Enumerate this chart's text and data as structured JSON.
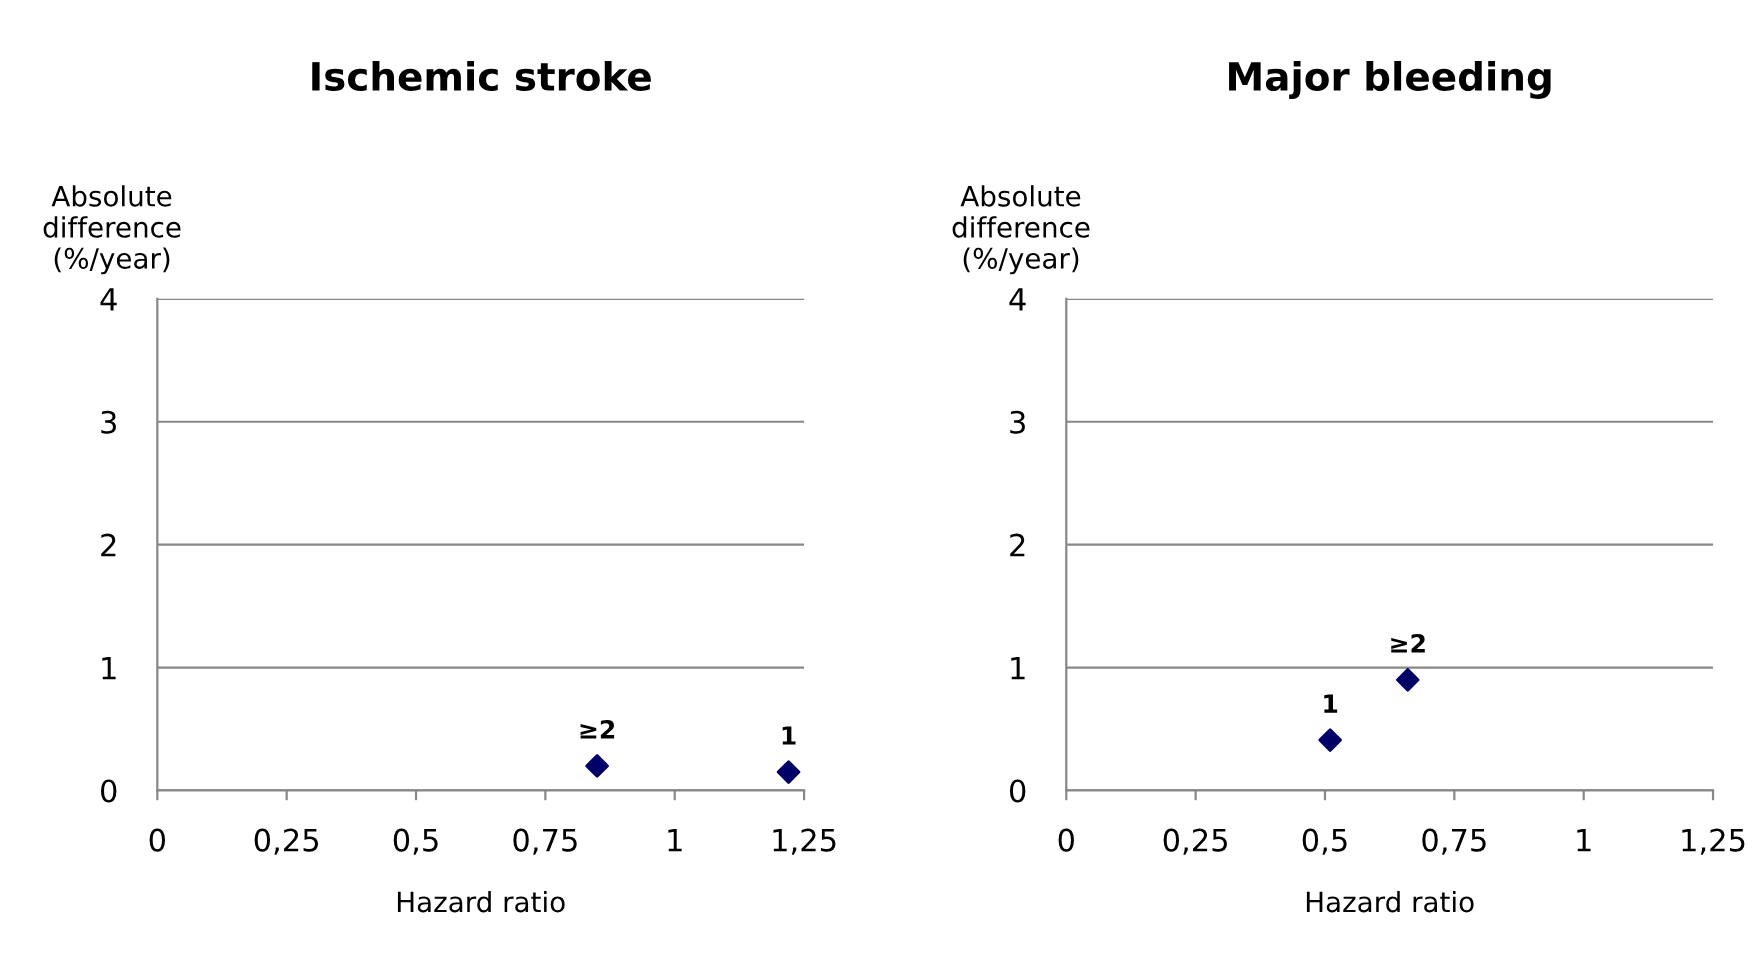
{
  "chart_data": [
    {
      "type": "scatter",
      "title": "Ischemic stroke",
      "xlabel": "Hazard ratio",
      "ylabel": "Absolute\ndifference\n(%/year)",
      "series": [
        {
          "color": "#000066",
          "x": [
            0.85,
            1.22
          ],
          "values": [
            0.2,
            0.15
          ]
        }
      ],
      "xlim": [
        0,
        1.25
      ],
      "xticks": [
        0,
        {
          "value": 0.25,
          "label": "0,25"
        },
        {
          "value": 0.5,
          "label": "0,5"
        },
        {
          "value": 0.75,
          "label": "0,75"
        },
        1,
        {
          "value": 1.25,
          "label": "1,25"
        }
      ],
      "ylim": [
        0,
        4
      ],
      "yticks": [
        0,
        1,
        2,
        3,
        4
      ],
      "grid": "y",
      "marker": "diamond",
      "annotations": [
        {
          "text": "≥2",
          "x": 0.85,
          "y": 0.2
        },
        {
          "text": "1",
          "x": 1.22,
          "y": 0.15
        }
      ]
    },
    {
      "type": "scatter",
      "title": "Major bleeding",
      "xlabel": "Hazard ratio",
      "ylabel": "Absolute\ndifference\n(%/year)",
      "series": [
        {
          "color": "#000066",
          "x": [
            0.66,
            0.51
          ],
          "values": [
            0.9,
            0.41
          ]
        }
      ],
      "xlim": [
        0,
        1.25
      ],
      "xticks": [
        0,
        {
          "value": 0.25,
          "label": "0,25"
        },
        {
          "value": 0.5,
          "label": "0,5"
        },
        {
          "value": 0.75,
          "label": "0,75"
        },
        1,
        {
          "value": 1.25,
          "label": "1,25"
        }
      ],
      "ylim": [
        0,
        4
      ],
      "yticks": [
        0,
        1,
        2,
        3,
        4
      ],
      "grid": "y",
      "marker": "diamond",
      "annotations": [
        {
          "text": "≥2",
          "x": 0.66,
          "y": 0.9
        },
        {
          "text": "1",
          "x": 0.51,
          "y": 0.41
        }
      ]
    }
  ]
}
